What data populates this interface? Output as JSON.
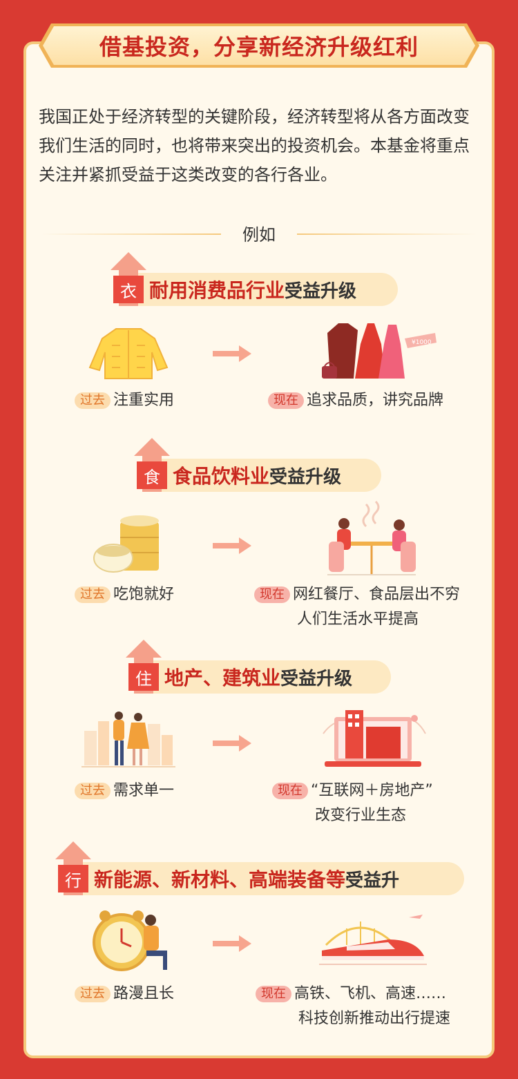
{
  "title": "借基投资，分享新经济升级红利",
  "intro": "我国正处于经济转型的关键阶段，经济转型将从各方面改变我们生活的同时，也将带来突出的投资机会。本基金将重点关注并紧抓受益于这类改变的各行各业。",
  "example_label": "例如",
  "tags": {
    "past": "过去",
    "now": "现在"
  },
  "categories": [
    {
      "char": "衣",
      "main": "耐用消费品行业",
      "sub": "受益升级",
      "past": "注重实用",
      "now_line1": "追求品质，讲究品牌",
      "now_line2": "",
      "price_tag": "¥1000"
    },
    {
      "char": "食",
      "main": "食品饮料业",
      "sub": "受益升级",
      "past": "吃饱就好",
      "now_line1": "网红餐厅、食品层出不穷",
      "now_line2": "人们生活水平提高"
    },
    {
      "char": "住",
      "main": "地产、建筑业",
      "sub": "受益升级",
      "past": "需求单一",
      "now_line1": "“互联网＋房地产”",
      "now_line2": "改变行业生态"
    },
    {
      "char": "行",
      "main": "新能源、新材料、高端装备等",
      "sub": "受益升",
      "past": "路漫且长",
      "now_line1": "高铁、飞机、高速……",
      "now_line2": "科技创新推动出行提速"
    }
  ],
  "colors": {
    "accent": "#c9271e",
    "background": "#d93a32",
    "card": "#fff9ec",
    "border": "#f5c97c"
  }
}
